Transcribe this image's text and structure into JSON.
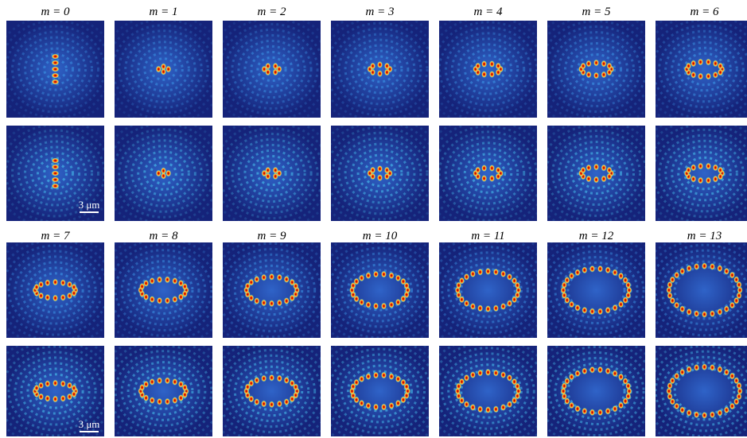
{
  "panels": [
    {
      "label": "m = 0"
    },
    {
      "label": "m = 1"
    },
    {
      "label": "m = 2"
    },
    {
      "label": "m = 3"
    },
    {
      "label": "m = 4"
    },
    {
      "label": "m = 5"
    },
    {
      "label": "m = 6"
    },
    {
      "label": "m = 7"
    },
    {
      "label": "m = 8"
    },
    {
      "label": "m = 9"
    },
    {
      "label": "m = 10"
    },
    {
      "label": "m = 11"
    },
    {
      "label": "m = 12"
    },
    {
      "label": "m = 13"
    }
  ],
  "scale_bars": [
    {
      "label": "3 μm"
    },
    {
      "label": "3 μm"
    }
  ]
}
